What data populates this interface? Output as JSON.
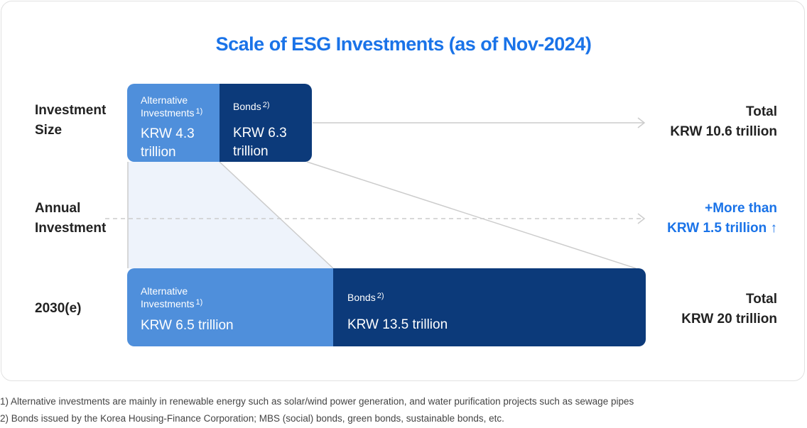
{
  "title": "Scale of ESG Investments (as of Nov-2024)",
  "rows": {
    "investment_size": "Investment\nSize",
    "annual_investment": "Annual\nInvestment",
    "year_2030": "2030(e)"
  },
  "current": {
    "alternative": {
      "label": "Alternative\nInvestments",
      "note": "1)",
      "value": "KRW 4.3\ntrillion"
    },
    "bonds": {
      "label": "Bonds",
      "note": "2)",
      "value": "KRW 6.3\ntrillion"
    },
    "total_label": "Total",
    "total_value": "KRW 10.6 trillion"
  },
  "annual": {
    "line1": "+More than",
    "line2": "KRW 1.5 trillion",
    "arrow": "↑"
  },
  "future": {
    "alternative": {
      "label": "Alternative\nInvestments",
      "note": "1)",
      "value": "KRW 6.5 trillion"
    },
    "bonds": {
      "label": "Bonds",
      "note": "2)",
      "value": "KRW 13.5 trillion"
    },
    "total_label": "Total",
    "total_value": "KRW 20 trillion"
  },
  "footnotes": [
    "1) Alternative investments are mainly in renewable energy such as solar/wind power generation, and water purification projects such as sewage pipes",
    "2) Bonds issued by the Korea Housing-Finance Corporation; MBS (social) bonds, green bonds, sustainable bonds, etc."
  ],
  "colors": {
    "accent": "#1a73e8",
    "alternative_box": "#4f8fdb",
    "bonds_box": "#0c3a7a",
    "shade": "#eef3fb"
  }
}
